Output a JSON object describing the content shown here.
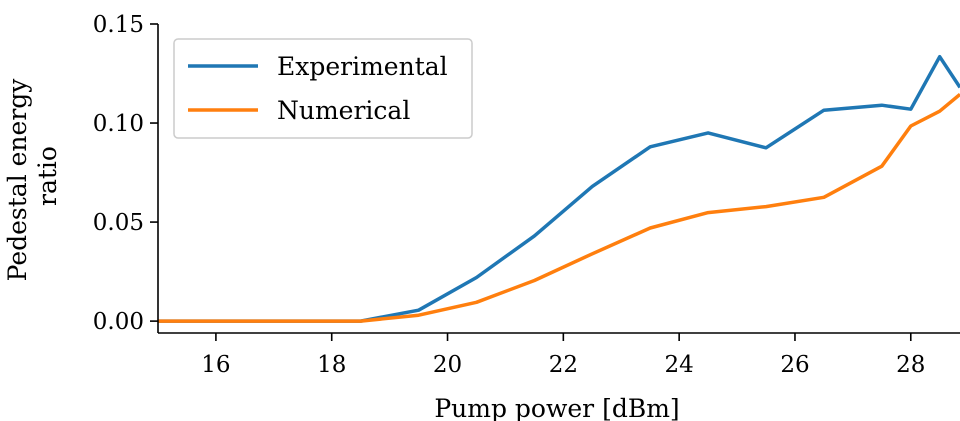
{
  "chart_data": {
    "type": "line",
    "title": "",
    "xlabel": "Pump power [dBm]",
    "ylabel": [
      "Pedestal energy",
      "ratio"
    ],
    "xlim": [
      15,
      28.85
    ],
    "ylim": [
      -0.006,
      0.15
    ],
    "xticks": [
      16,
      18,
      20,
      22,
      24,
      26,
      28
    ],
    "xtick_labels": [
      "16",
      "18",
      "20",
      "22",
      "24",
      "26",
      "28"
    ],
    "yticks": [
      0.0,
      0.05,
      0.1,
      0.15
    ],
    "ytick_labels": [
      "0.00",
      "0.05",
      "0.10",
      "0.15"
    ],
    "grid": false,
    "legend_position": "top-left",
    "x": [
      15,
      15.5,
      16.5,
      17.5,
      18.5,
      19.5,
      20.5,
      21.5,
      22.5,
      23.5,
      24.5,
      25.5,
      26.5,
      27.5,
      28,
      28.5,
      28.85
    ],
    "series": [
      {
        "name": "Experimental",
        "color": "#1f77b4",
        "values": [
          0.0,
          0.0,
          0.0,
          0.0,
          0.0,
          0.0055,
          0.022,
          0.043,
          0.068,
          0.088,
          0.095,
          0.0875,
          0.1065,
          0.109,
          0.107,
          0.1335,
          0.118
        ]
      },
      {
        "name": "Numerical",
        "color": "#ff7f0e",
        "values": [
          0.0,
          0.0,
          0.0,
          0.0,
          0.0,
          0.003,
          0.0095,
          0.0205,
          0.034,
          0.047,
          0.0548,
          0.0578,
          0.0625,
          0.0782,
          0.0985,
          0.106,
          0.1145
        ]
      }
    ]
  }
}
